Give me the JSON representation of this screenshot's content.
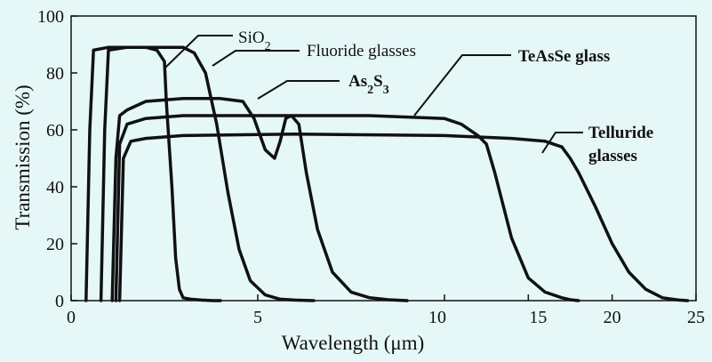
{
  "chart_data": {
    "type": "line",
    "xlabel": "Wavelength (μm)",
    "ylabel": "Transmission (%)",
    "ylim": [
      0,
      100
    ],
    "x_scale": "piecewise-linear (0–10 μm on left half, 10–25 μm on right half)",
    "x_ticks": [
      {
        "label": "0",
        "value": 0
      },
      {
        "label": "5",
        "value": 5
      },
      {
        "label": "10",
        "value": 10
      },
      {
        "label": "15",
        "value": 15
      },
      {
        "label": "20",
        "value": 20
      },
      {
        "label": "25",
        "value": 25
      }
    ],
    "y_ticks": [
      {
        "label": "0",
        "value": 0
      },
      {
        "label": "20",
        "value": 20
      },
      {
        "label": "40",
        "value": 40
      },
      {
        "label": "60",
        "value": 60
      },
      {
        "label": "80",
        "value": 80
      },
      {
        "label": "100",
        "value": 100
      }
    ],
    "grid": false,
    "series": [
      {
        "name": "SiO2",
        "label_main": "SiO",
        "label_sub": "2",
        "label_style": "normal",
        "x": [
          0.4,
          0.5,
          0.6,
          1.0,
          1.5,
          2.0,
          2.3,
          2.5,
          2.55,
          2.7,
          2.8,
          2.9,
          3.0,
          3.2,
          3.5,
          3.8,
          4.0
        ],
        "y": [
          0,
          60,
          88,
          89,
          89,
          89,
          88,
          84,
          70,
          40,
          15,
          4,
          1,
          0.5,
          0.2,
          0,
          0
        ]
      },
      {
        "name": "Fluoride glasses",
        "label_main": "Fluoride glasses",
        "label_sub": "",
        "label_style": "normal",
        "x": [
          0.8,
          0.9,
          1.0,
          1.5,
          2.5,
          3.0,
          3.3,
          3.6,
          3.9,
          4.2,
          4.5,
          4.8,
          5.2,
          5.6,
          6.0,
          6.5
        ],
        "y": [
          0,
          60,
          88,
          89,
          89,
          89,
          87,
          80,
          62,
          38,
          18,
          7,
          2,
          0.5,
          0.2,
          0
        ]
      },
      {
        "name": "As2S3",
        "label_main": "As",
        "label_sub": "2",
        "label_main2": "S",
        "label_sub2": "3",
        "label_style": "bold",
        "x": [
          1.1,
          1.2,
          1.3,
          1.5,
          2.0,
          3.0,
          4.0,
          4.6,
          4.9,
          5.2,
          5.45,
          5.6,
          5.75,
          5.9,
          6.1,
          6.3,
          6.6,
          7.0,
          7.5,
          8.0,
          8.5,
          9.0
        ],
        "y": [
          0,
          50,
          65,
          67,
          70,
          71,
          71,
          70,
          64,
          53,
          50,
          56,
          64,
          65,
          62,
          45,
          25,
          10,
          3,
          1,
          0.3,
          0
        ]
      },
      {
        "name": "TeAsSe glass",
        "label_main": "TeAsSe glass",
        "label_sub": "",
        "label_style": "bold",
        "x": [
          1.2,
          1.3,
          1.5,
          2.0,
          3.0,
          5.0,
          8.0,
          10.0,
          11.0,
          12.0,
          12.5,
          13.0,
          14.0,
          15.0,
          16.0,
          17.0,
          17.5,
          18.0
        ],
        "y": [
          0,
          55,
          62,
          64,
          65,
          65,
          65,
          64,
          62,
          58,
          55,
          45,
          22,
          8,
          3,
          1,
          0.3,
          0
        ]
      },
      {
        "name": "Telluride glasses",
        "label_main": "Telluride",
        "label_main_line2": "glasses",
        "label_sub": "",
        "label_style": "bold",
        "x": [
          1.3,
          1.4,
          1.6,
          2.0,
          3.0,
          6.0,
          10.0,
          14.0,
          16.0,
          17.0,
          17.5,
          18.0,
          19.0,
          20.0,
          21.0,
          22.0,
          23.0,
          24.0,
          24.5
        ],
        "y": [
          0,
          50,
          56,
          57,
          58,
          58.5,
          58,
          57,
          56,
          54,
          50,
          45,
          33,
          20,
          10,
          4,
          1,
          0.2,
          0
        ]
      }
    ]
  }
}
